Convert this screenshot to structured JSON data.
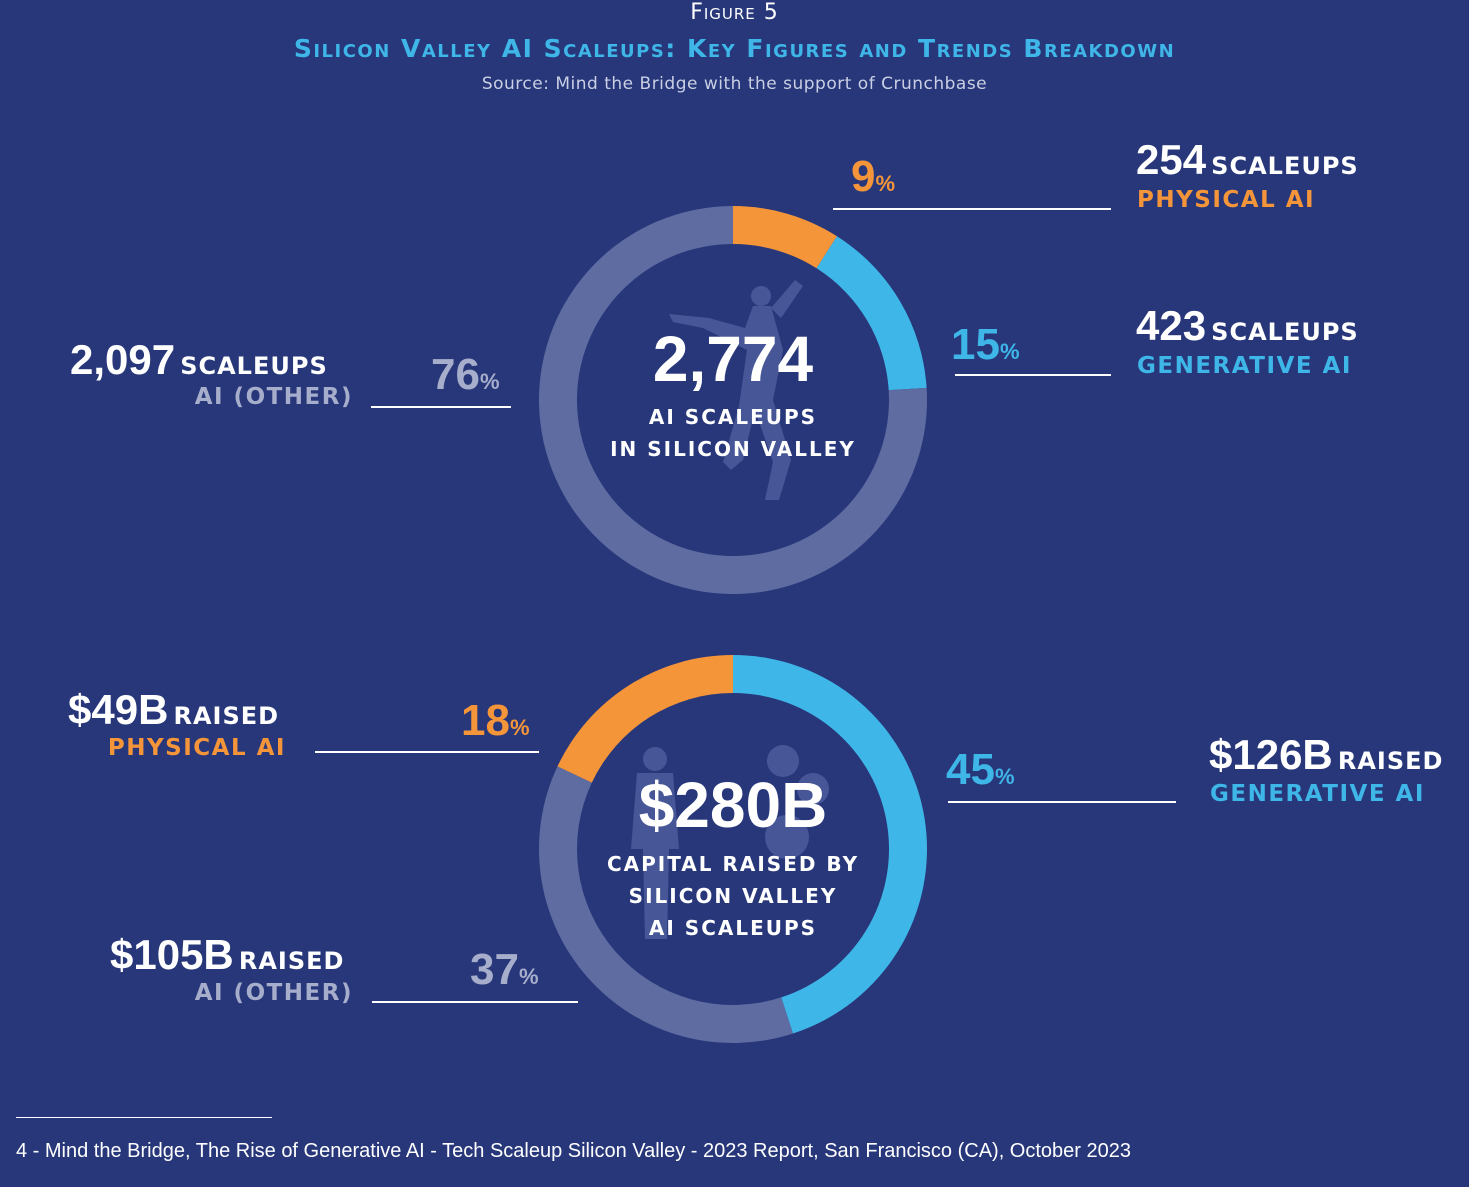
{
  "figure": {
    "label": "Figure 5",
    "title": "Silicon Valley AI Scaleups: Key Figures and Trends Breakdown",
    "source": "Source: Mind the Bridge with the support of Crunchbase"
  },
  "colors": {
    "background": "#27377a",
    "physical": "#f5953a",
    "generative": "#3fb6e8",
    "other": "#5f6ca2",
    "inner": "#27377a"
  },
  "chart_data": [
    {
      "type": "pie",
      "title": "AI scaleups in Silicon Valley",
      "center_value": "2,774",
      "center_label_1": "AI SCALEUPS",
      "center_label_2": "IN SILICON VALLEY",
      "slices": [
        {
          "key": "physical",
          "name": "Physical AI",
          "pct": 9,
          "count": "254",
          "unit": "SCALEUPS",
          "label": "PHYSICAL AI"
        },
        {
          "key": "generative",
          "name": "Generative AI",
          "pct": 15,
          "count": "423",
          "unit": "SCALEUPS",
          "label": "GENERATIVE AI"
        },
        {
          "key": "other",
          "name": "AI (Other)",
          "pct": 76,
          "count": "2,097",
          "unit": "SCALEUPS",
          "label": "AI (OTHER)"
        }
      ]
    },
    {
      "type": "pie",
      "title": "Capital raised by Silicon Valley AI scaleups",
      "center_value": "$280B",
      "center_label_1": "CAPITAL RAISED BY",
      "center_label_2": "SILICON VALLEY",
      "center_label_3": "AI SCALEUPS",
      "slices": [
        {
          "key": "generative",
          "name": "Generative AI",
          "pct": 45,
          "amount": "$126B",
          "unit": "RAISED",
          "label": "GENERATIVE AI"
        },
        {
          "key": "other",
          "name": "AI (Other)",
          "pct": 37,
          "amount": "$105B",
          "unit": "RAISED",
          "label": "AI (OTHER)"
        },
        {
          "key": "physical",
          "name": "Physical AI",
          "pct": 18,
          "amount": "$49B",
          "unit": "RAISED",
          "label": "PHYSICAL AI"
        }
      ]
    }
  ],
  "pct_symbol": "%",
  "footnote": "4 - Mind the Bridge, The Rise of Generative AI - Tech Scaleup Silicon Valley - 2023 Report, San Francisco (CA), October 2023"
}
